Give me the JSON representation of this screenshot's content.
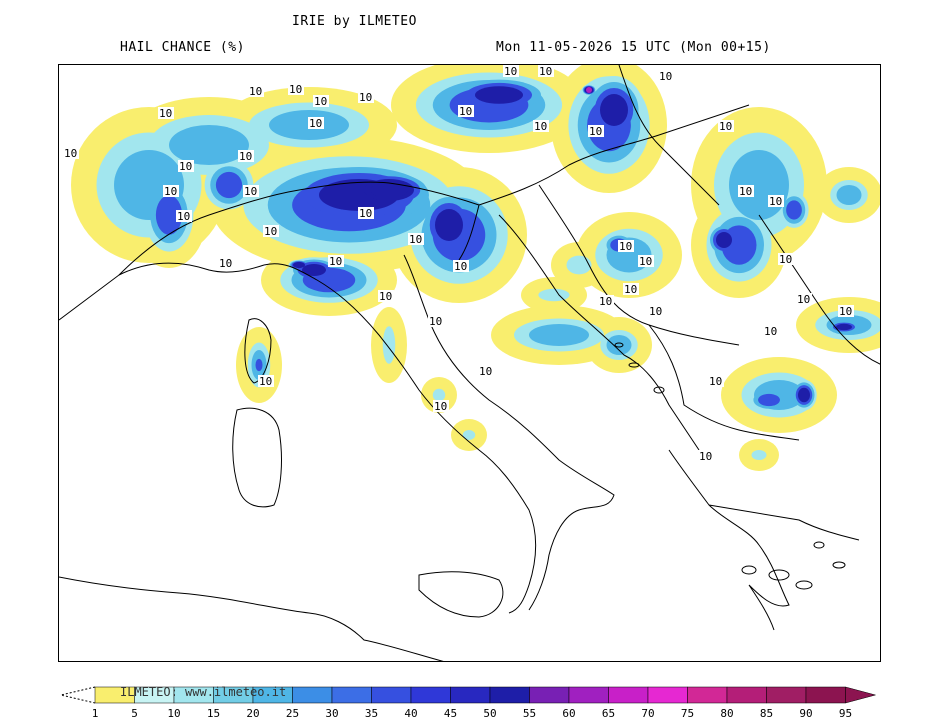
{
  "header": {
    "title": "IRIE by ILMETEO",
    "left_label": "HAIL CHANCE (%)",
    "right_label": "Mon 11-05-2026 15 UTC (Mon 00+15)"
  },
  "map": {
    "contour_label": "10",
    "contour_label_count": 44
  },
  "legend": {
    "watermark": "ILMETEO: www.ilmeteo.it",
    "ticks": [
      "1",
      "5",
      "10",
      "15",
      "20",
      "25",
      "30",
      "35",
      "40",
      "45",
      "50",
      "55",
      "60",
      "65",
      "70",
      "75",
      "80",
      "85",
      "90",
      "95"
    ],
    "colors": [
      "#f9ee6e",
      "#c8f4f4",
      "#a2e6ee",
      "#72cde6",
      "#4fb6e6",
      "#3c8ee6",
      "#3c6ee6",
      "#3650e0",
      "#2f38d8",
      "#2828c0",
      "#1e1ea8",
      "#7820b4",
      "#a020c0",
      "#c820c8",
      "#e628d2",
      "#d22896",
      "#b41e78",
      "#a01e64",
      "#8c1450"
    ]
  },
  "colors": {
    "coastline": "#000000",
    "shade_yellow": "#f9ee6e",
    "shade_cyan": "#a2e6ee",
    "shade_mid": "#4fb6e6",
    "shade_blue": "#3650e0",
    "shade_dark": "#1e1ea8",
    "shade_purple": "#b020c0"
  }
}
